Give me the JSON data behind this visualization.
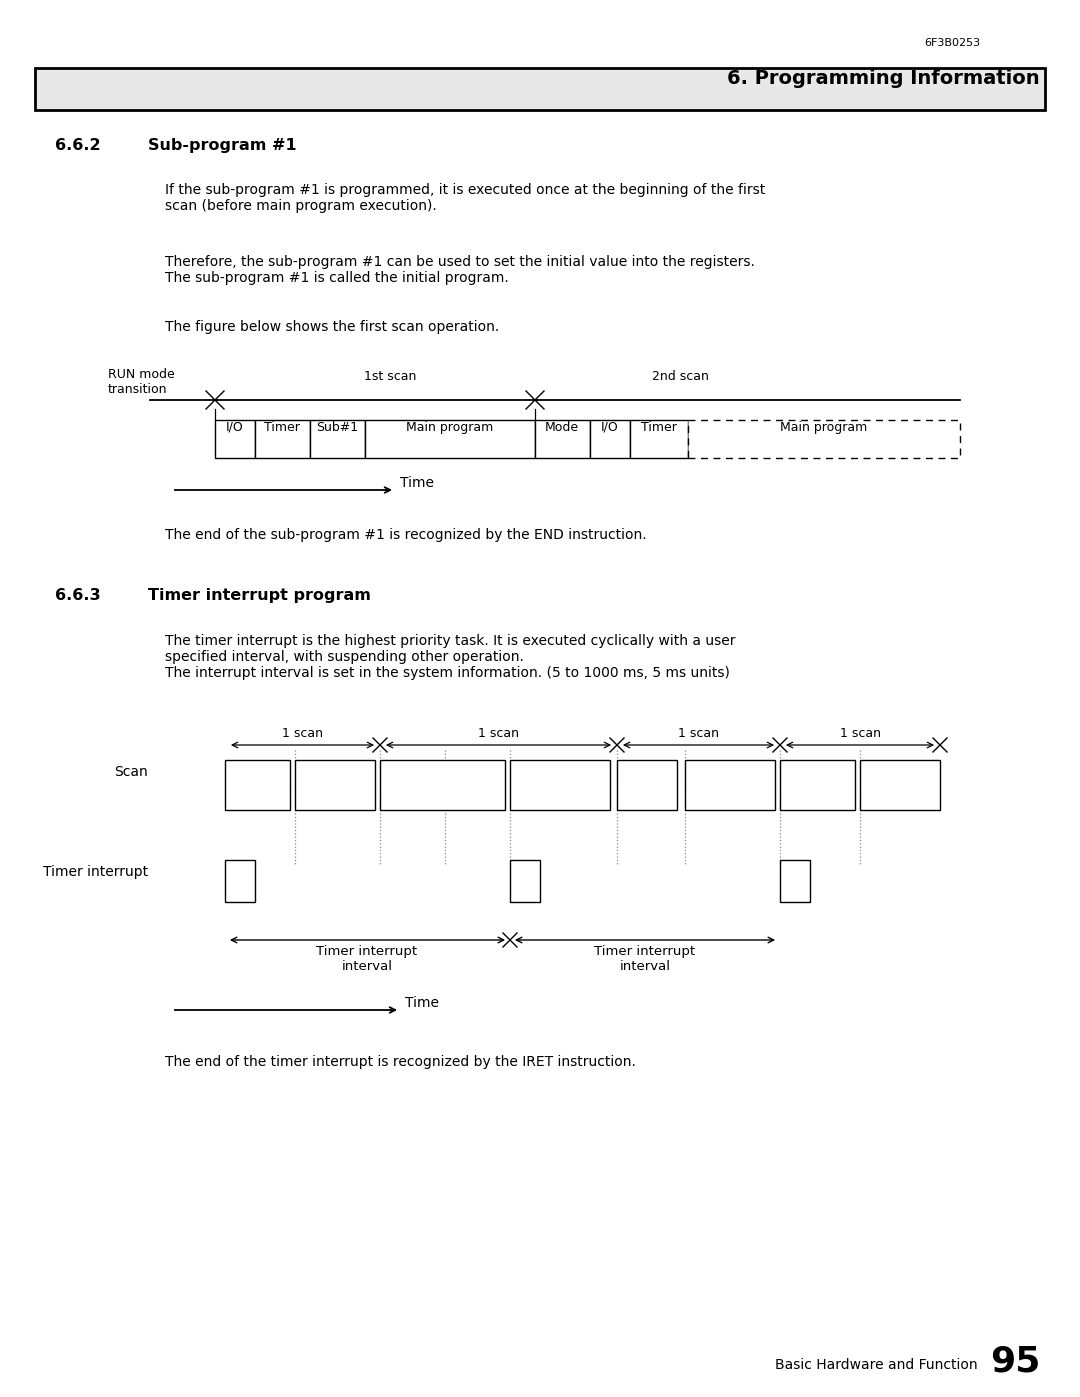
{
  "page_id": "6F3B0253",
  "section_title": "6. Programming Information",
  "section_title_bg": "#e8e8e8",
  "subsection1_num": "6.6.2",
  "subsection1_title": "Sub-program #1",
  "para1_text": "If the sub-program #1 is programmed, it is executed once at the beginning of the first\nscan (before main program execution).",
  "para2_text": "Therefore, the sub-program #1 can be used to set the initial value into the registers.\nThe sub-program #1 is called the initial program.",
  "para3_text": "The figure below shows the first scan operation.",
  "end_text1": "The end of the sub-program #1 is recognized by the END instruction.",
  "subsection2_num": "6.6.3",
  "subsection2_title": "Timer interrupt program",
  "para4_text": "The timer interrupt is the highest priority task. It is executed cyclically with a user\nspecified interval, with suspending other operation.\nThe interrupt interval is set in the system information. (5 to 1000 ms, 5 ms units)",
  "end_text2": "The end of the timer interrupt is recognized by the IRET instruction.",
  "footer_text": "Basic Hardware and Function",
  "footer_page": "95",
  "bg_color": "#ffffff",
  "text_color": "#000000"
}
